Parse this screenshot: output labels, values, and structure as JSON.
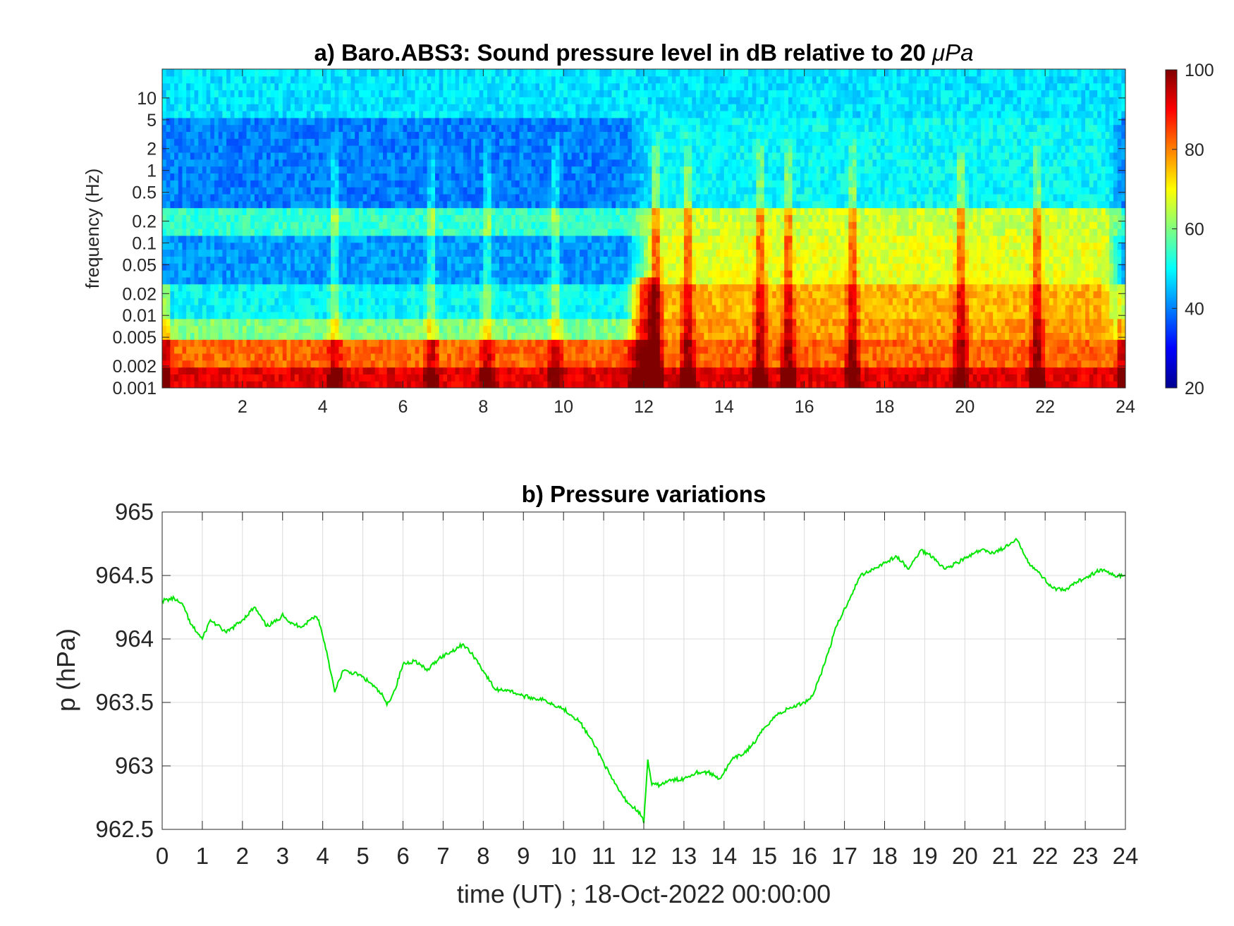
{
  "chart_data": [
    {
      "type": "heatmap",
      "title_main": "a) Baro.ABS3: Sound pressure level in dB relative to 20 ",
      "title_unit": "μPa",
      "xlabel": "",
      "ylabel": "frequency (Hz)",
      "x_scale": "linear",
      "y_scale": "log",
      "xlim": [
        0,
        24
      ],
      "ylim": [
        0.001,
        25
      ],
      "x_ticks": [
        2,
        4,
        6,
        8,
        10,
        12,
        14,
        16,
        18,
        20,
        22,
        24
      ],
      "y_ticks": [
        0.001,
        0.002,
        0.005,
        0.01,
        0.02,
        0.05,
        0.1,
        0.2,
        0.5,
        1,
        2,
        5,
        10
      ],
      "y_tick_labels": [
        "0.001",
        "0.002",
        "0.005",
        "0.01",
        "0.02",
        "0.05",
        "0.1",
        "0.2",
        "0.5",
        "1",
        "2",
        "5",
        "10"
      ],
      "colormap": "jet",
      "clim": [
        20,
        100
      ],
      "colorbar_ticks": [
        20,
        40,
        60,
        80,
        100
      ],
      "colorbar_position": "right",
      "description_values": {
        "quiet_period_hours": [
          0,
          12
        ],
        "active_period_hours": [
          12,
          24
        ],
        "event_onset_hour": 12
      }
    },
    {
      "type": "line",
      "title": "b) Pressure variations",
      "xlabel": "time (UT) ; 18-Oct-2022 00:00:00",
      "ylabel": "p (hPa)",
      "xlim": [
        0,
        24
      ],
      "ylim": [
        962.5,
        965
      ],
      "x_ticks": [
        0,
        1,
        2,
        3,
        4,
        5,
        6,
        7,
        8,
        9,
        10,
        11,
        12,
        13,
        14,
        15,
        16,
        17,
        18,
        19,
        20,
        21,
        22,
        23,
        24
      ],
      "y_ticks": [
        962.5,
        963,
        963.5,
        964,
        964.5,
        965
      ],
      "y_tick_labels": [
        "962.5",
        "963",
        "963.5",
        "964",
        "964.5",
        "965"
      ],
      "grid": true,
      "series": [
        {
          "color": "#00e600",
          "x": [
            0,
            0.3,
            0.55,
            0.7,
            1.0,
            1.2,
            1.6,
            2.0,
            2.3,
            2.6,
            2.9,
            3.0,
            3.2,
            3.5,
            3.8,
            3.9,
            4.1,
            4.3,
            4.5,
            4.9,
            5.2,
            5.5,
            5.6,
            5.8,
            6.0,
            6.3,
            6.6,
            6.9,
            7.2,
            7.5,
            7.8,
            8.0,
            8.3,
            8.6,
            9.0,
            9.5,
            10.0,
            10.4,
            10.8,
            11.2,
            11.5,
            11.7,
            11.85,
            11.95,
            12.0,
            12.1,
            12.2,
            12.4,
            12.6,
            13.0,
            13.3,
            13.6,
            13.9,
            14.2,
            14.5,
            14.8,
            15.0,
            15.3,
            15.6,
            16.0,
            16.2,
            16.5,
            16.8,
            17.1,
            17.4,
            17.7,
            18.0,
            18.3,
            18.6,
            18.9,
            19.2,
            19.5,
            19.8,
            20.1,
            20.4,
            20.7,
            21.0,
            21.3,
            21.6,
            21.9,
            22.2,
            22.5,
            22.8,
            23.1,
            23.4,
            23.7,
            24.0
          ],
          "y": [
            964.3,
            964.32,
            964.25,
            964.12,
            964.0,
            964.15,
            964.05,
            964.15,
            964.25,
            964.1,
            964.15,
            964.2,
            964.12,
            964.1,
            964.18,
            964.15,
            963.9,
            963.58,
            963.75,
            963.72,
            963.65,
            963.55,
            963.48,
            963.6,
            963.8,
            963.83,
            963.75,
            963.85,
            963.9,
            963.96,
            963.85,
            963.75,
            963.6,
            963.6,
            963.55,
            963.52,
            963.45,
            963.35,
            963.15,
            962.9,
            962.75,
            962.68,
            962.65,
            962.6,
            962.55,
            963.05,
            962.85,
            962.85,
            962.88,
            962.9,
            962.95,
            962.95,
            962.9,
            963.05,
            963.1,
            963.2,
            963.3,
            963.4,
            963.45,
            963.5,
            963.55,
            963.8,
            964.1,
            964.3,
            964.5,
            964.55,
            964.6,
            964.65,
            964.55,
            964.7,
            964.65,
            964.55,
            964.6,
            964.65,
            964.7,
            964.68,
            964.72,
            964.78,
            964.6,
            964.5,
            964.4,
            964.38,
            964.45,
            964.5,
            964.55,
            964.5,
            964.5
          ]
        }
      ]
    }
  ]
}
